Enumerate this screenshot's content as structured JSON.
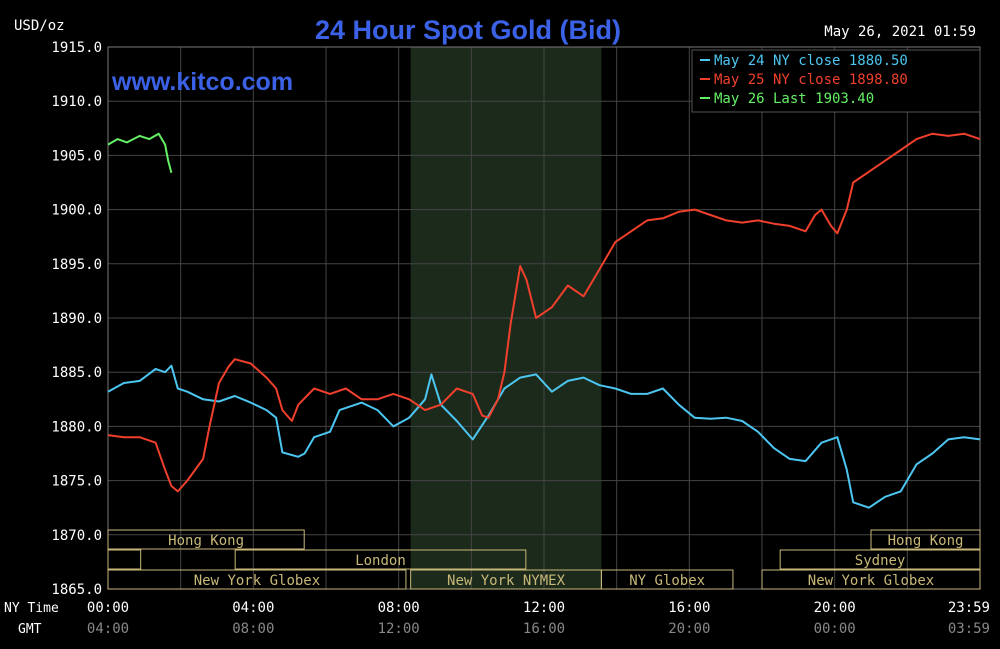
{
  "chart_data": {
    "type": "line",
    "title": "24 Hour Spot Gold (Bid)",
    "watermark": "www.kitco.com",
    "timestamp": "May 26, 2021 01:59",
    "ylabel": "USD/oz",
    "ylim": [
      1865,
      1915
    ],
    "yticks": [
      "1915.0",
      "1910.0",
      "1905.0",
      "1900.0",
      "1895.0",
      "1890.0",
      "1885.0",
      "1880.0",
      "1875.0",
      "1870.0",
      "1865.0"
    ],
    "x_row_labels": [
      "NY Time",
      "GMT"
    ],
    "xticks_ny": [
      "00:00",
      "04:00",
      "08:00",
      "12:00",
      "16:00",
      "20:00",
      "23:59"
    ],
    "xticks_gmt": [
      "04:00",
      "08:00",
      "12:00",
      "16:00",
      "20:00",
      "00:00",
      "03:59"
    ],
    "xlim_hours": [
      0,
      24
    ],
    "shaded_region_hours": [
      8.33,
      13.58
    ],
    "grid": true,
    "legend_position": "top-right",
    "colors": {
      "background": "#000000",
      "grid": "#444444",
      "axis_text": "#ffffff",
      "title": "#3b62e6",
      "session_box": "#c8b878"
    },
    "series": [
      {
        "name": "May 24 NY close 1880.50",
        "color": "#4cc6f0",
        "points": [
          [
            0,
            1883.2
          ],
          [
            0.5,
            1884
          ],
          [
            1,
            1884.2
          ],
          [
            1.5,
            1885.3
          ],
          [
            1.8,
            1885.0
          ],
          [
            2.0,
            1885.6
          ],
          [
            2.2,
            1883.5
          ],
          [
            2.5,
            1883.2
          ],
          [
            3,
            1882.5
          ],
          [
            3.5,
            1882.3
          ],
          [
            4,
            1882.8
          ],
          [
            4.5,
            1882.2
          ],
          [
            5,
            1881.5
          ],
          [
            5.3,
            1880.8
          ],
          [
            5.5,
            1877.6
          ],
          [
            6,
            1877.2
          ],
          [
            6.2,
            1877.5
          ],
          [
            6.5,
            1879.0
          ],
          [
            7,
            1879.5
          ],
          [
            7.3,
            1881.5
          ],
          [
            8,
            1882.2
          ],
          [
            8.5,
            1881.5
          ],
          [
            9,
            1880.0
          ],
          [
            9.5,
            1880.8
          ],
          [
            10,
            1882.5
          ],
          [
            10.2,
            1884.8
          ],
          [
            10.5,
            1882.0
          ],
          [
            11,
            1880.5
          ],
          [
            11.5,
            1878.8
          ],
          [
            12,
            1881.0
          ],
          [
            12.5,
            1883.5
          ],
          [
            13,
            1884.5
          ],
          [
            13.5,
            1884.8
          ],
          [
            14,
            1883.2
          ],
          [
            14.5,
            1884.2
          ],
          [
            15,
            1884.5
          ],
          [
            15.5,
            1883.8
          ],
          [
            16,
            1883.5
          ],
          [
            16.5,
            1883.0
          ],
          [
            17,
            1883.0
          ],
          [
            17.5,
            1883.5
          ],
          [
            18,
            1882.0
          ],
          [
            18.5,
            1880.8
          ],
          [
            19,
            1880.7
          ],
          [
            19.5,
            1880.8
          ],
          [
            20,
            1880.5
          ],
          [
            20.5,
            1879.5
          ],
          [
            21,
            1878.0
          ],
          [
            21.5,
            1877.0
          ],
          [
            22,
            1876.8
          ],
          [
            22.5,
            1878.5
          ],
          [
            23,
            1879.0
          ],
          [
            23.3,
            1876.0
          ],
          [
            23.5,
            1873.0
          ],
          [
            24,
            1872.5
          ],
          [
            24.5,
            1873.5
          ],
          [
            25,
            1874.0
          ],
          [
            25.5,
            1876.5
          ],
          [
            26,
            1877.5
          ],
          [
            26.5,
            1878.8
          ],
          [
            27,
            1879.0
          ],
          [
            27.5,
            1878.8
          ]
        ]
      },
      {
        "name": "May 25 NY close 1898.80",
        "color": "#f0402c",
        "points": [
          [
            0,
            1879.2
          ],
          [
            0.5,
            1879.0
          ],
          [
            1,
            1879.0
          ],
          [
            1.5,
            1878.5
          ],
          [
            1.8,
            1876.0
          ],
          [
            2.0,
            1874.5
          ],
          [
            2.2,
            1874.0
          ],
          [
            2.5,
            1875.0
          ],
          [
            3,
            1877.0
          ],
          [
            3.2,
            1880.0
          ],
          [
            3.5,
            1884.0
          ],
          [
            3.8,
            1885.5
          ],
          [
            4,
            1886.2
          ],
          [
            4.5,
            1885.8
          ],
          [
            5,
            1884.5
          ],
          [
            5.3,
            1883.5
          ],
          [
            5.5,
            1881.5
          ],
          [
            5.8,
            1880.5
          ],
          [
            6,
            1882.0
          ],
          [
            6.5,
            1883.5
          ],
          [
            7,
            1883.0
          ],
          [
            7.5,
            1883.5
          ],
          [
            8,
            1882.5
          ],
          [
            8.5,
            1882.5
          ],
          [
            9,
            1883.0
          ],
          [
            9.5,
            1882.5
          ],
          [
            10,
            1881.5
          ],
          [
            10.5,
            1882.0
          ],
          [
            11,
            1883.5
          ],
          [
            11.5,
            1883.0
          ],
          [
            11.8,
            1881.0
          ],
          [
            12,
            1880.8
          ],
          [
            12.3,
            1882.5
          ],
          [
            12.5,
            1885.0
          ],
          [
            12.7,
            1889.5
          ],
          [
            13,
            1894.8
          ],
          [
            13.2,
            1893.5
          ],
          [
            13.5,
            1890.0
          ],
          [
            14,
            1891.0
          ],
          [
            14.5,
            1893.0
          ],
          [
            15,
            1892.0
          ],
          [
            15.5,
            1894.5
          ],
          [
            16,
            1897.0
          ],
          [
            16.5,
            1898.0
          ],
          [
            17,
            1899.0
          ],
          [
            17.5,
            1899.2
          ],
          [
            18,
            1899.8
          ],
          [
            18.5,
            1900.0
          ],
          [
            19,
            1899.5
          ],
          [
            19.5,
            1899.0
          ],
          [
            20,
            1898.8
          ],
          [
            20.5,
            1899.0
          ],
          [
            21,
            1898.7
          ],
          [
            21.5,
            1898.5
          ],
          [
            22,
            1898.0
          ],
          [
            22.3,
            1899.5
          ],
          [
            22.5,
            1900.0
          ],
          [
            22.8,
            1898.5
          ],
          [
            23,
            1897.8
          ],
          [
            23.3,
            1900.0
          ],
          [
            23.5,
            1902.5
          ],
          [
            24,
            1903.5
          ],
          [
            24.5,
            1904.5
          ],
          [
            25,
            1905.5
          ],
          [
            25.5,
            1906.5
          ],
          [
            26,
            1907.0
          ],
          [
            26.5,
            1906.8
          ],
          [
            27,
            1907.0
          ],
          [
            27.5,
            1906.5
          ]
        ]
      },
      {
        "name": "May 26 Last 1903.40",
        "color": "#64f064",
        "points": [
          [
            0,
            1906.0
          ],
          [
            0.3,
            1906.5
          ],
          [
            0.6,
            1906.2
          ],
          [
            1,
            1906.8
          ],
          [
            1.3,
            1906.5
          ],
          [
            1.6,
            1907.0
          ],
          [
            1.8,
            1906.0
          ],
          [
            1.9,
            1904.5
          ],
          [
            2.0,
            1903.4
          ]
        ]
      }
    ],
    "sessions": [
      {
        "label": "Hong Kong",
        "row": 0,
        "start": 0,
        "end": 5.4
      },
      {
        "label": "Hong Kong",
        "row": 0,
        "start": 21.0,
        "end": 24
      },
      {
        "label": "",
        "row": 1,
        "start": 0,
        "end": 0.9
      },
      {
        "label": "London",
        "row": 1,
        "start": 3.5,
        "end": 11.5
      },
      {
        "label": "Sydney",
        "row": 1,
        "start": 18.5,
        "end": 24
      },
      {
        "label": "New York Globex",
        "row": 2,
        "start": 0,
        "end": 8.2
      },
      {
        "label": "New York NYMEX",
        "row": 2,
        "start": 8.33,
        "end": 13.58
      },
      {
        "label": "NY Globex",
        "row": 2,
        "start": 13.58,
        "end": 17.2
      },
      {
        "label": "New York Globex",
        "row": 2,
        "start": 18.0,
        "end": 24
      }
    ]
  }
}
